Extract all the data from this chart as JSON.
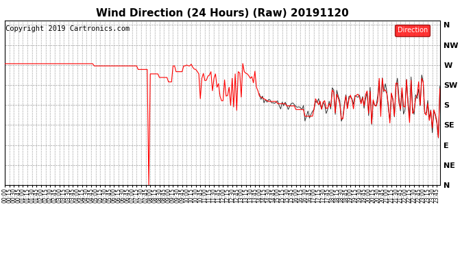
{
  "title": "Wind Direction (24 Hours) (Raw) 20191120",
  "copyright": "Copyright 2019 Cartronics.com",
  "legend_label": "Direction",
  "line_color": "#ff0000",
  "dark_line_color": "#333333",
  "background_color": "#ffffff",
  "grid_color": "#aaaaaa",
  "ytick_labels": [
    "N",
    "NW",
    "W",
    "SW",
    "S",
    "SE",
    "E",
    "NE",
    "N"
  ],
  "ytick_values": [
    360,
    315,
    270,
    225,
    180,
    135,
    90,
    45,
    0
  ],
  "ymin": 0,
  "ymax": 370,
  "title_fontsize": 11,
  "copyright_fontsize": 7.5
}
